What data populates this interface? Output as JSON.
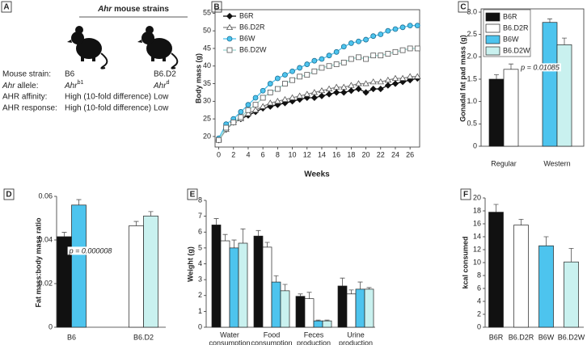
{
  "panel_a": {
    "panel": "A",
    "title_italic": "Ahr",
    "title": "mouse strains",
    "rows": [
      [
        "Mouse strain:",
        "B6",
        "B6.D2"
      ],
      [
        {
          "italic": "Ahr",
          "text": "allele:"
        },
        {
          "text": "Ahr",
          "sup": "b1"
        },
        {
          "text": "Ahr",
          "sup": "d"
        }
      ],
      [
        "AHR affinity:",
        "High (10-fold difference)",
        "Low"
      ],
      [
        "AHR response:",
        "High (10-fold difference)",
        "Low"
      ]
    ]
  },
  "chart_data": [
    {
      "panel": "B",
      "type": "line",
      "x_label": "Weeks",
      "y_label": "Body mass (g)",
      "legend": "upper left",
      "x": [
        0,
        1,
        2,
        3,
        4,
        5,
        6,
        7,
        8,
        9,
        10,
        11,
        12,
        13,
        14,
        15,
        16,
        17,
        18,
        19,
        20,
        21,
        22,
        23,
        24,
        25,
        26,
        27
      ],
      "xlim": [
        -0.5,
        27.3
      ],
      "xticks": [
        0,
        2,
        4,
        6,
        8,
        10,
        12,
        14,
        16,
        18,
        20,
        22,
        24,
        26
      ],
      "ylim": [
        17,
        56
      ],
      "yticks": [
        20,
        25,
        30,
        35,
        40,
        45,
        50,
        55
      ],
      "series": [
        {
          "name": "B6R",
          "color": "#111111",
          "marker": "diamond",
          "values": [
            19,
            22,
            24,
            25,
            26,
            27,
            28,
            28.5,
            29,
            29.5,
            30,
            30.5,
            31,
            31,
            31.5,
            32,
            32.5,
            32.5,
            33,
            33.5,
            32.5,
            33.5,
            33.5,
            34.5,
            35,
            35.5,
            36,
            36.5
          ]
        },
        {
          "name": "B6.D2R",
          "color": "#888888",
          "marker": "triangle",
          "values": [
            19,
            22,
            24,
            25,
            26.5,
            27.5,
            28.5,
            29.5,
            30,
            30.5,
            31,
            31.5,
            32,
            32.5,
            33,
            33.5,
            34,
            34,
            34.5,
            35,
            35,
            35.5,
            35.5,
            36,
            36.5,
            36.5,
            37,
            37
          ]
        },
        {
          "name": "B6W",
          "color": "#4dc4ee",
          "marker": "circle",
          "values": [
            19.5,
            23.5,
            25,
            27,
            29,
            31,
            33,
            35,
            36.5,
            37.5,
            38.5,
            39.5,
            40.5,
            41.5,
            42,
            43,
            44,
            45.5,
            46.5,
            47,
            47.5,
            48.5,
            49,
            50,
            50.5,
            51,
            51.5,
            51.5
          ]
        },
        {
          "name": "B6.D2W",
          "color": "#9fd9d2",
          "marker": "square",
          "values": [
            19,
            22.5,
            24,
            25.5,
            27.5,
            29,
            31,
            32.5,
            33.5,
            35,
            36,
            37,
            37.5,
            38.5,
            39.5,
            40,
            40.5,
            41,
            42,
            42.5,
            42,
            43,
            43,
            43.5,
            44,
            44.5,
            45,
            45
          ]
        }
      ]
    },
    {
      "panel": "C",
      "type": "bar",
      "y_label": "Gonadal fat pad mass (g)",
      "legend": "upper left",
      "annotation": "p = 0.01085",
      "categories": [
        "Regular",
        "Western"
      ],
      "ylim": [
        0,
        3
      ],
      "yticks": [
        0,
        0.5,
        {
          "value": 1,
          "label": "1.0"
        },
        1.5,
        {
          "value": 2,
          "label": "2.0"
        },
        2.5,
        {
          "value": 3,
          "label": "3.0"
        }
      ],
      "series": [
        {
          "name": "B6R",
          "color": "#111111",
          "values": [
            1.5,
            null
          ],
          "errors": [
            0.1,
            null
          ]
        },
        {
          "name": "B6.D2R",
          "color": "#ffffff",
          "values": [
            1.72,
            null
          ],
          "errors": [
            0.12,
            null
          ]
        },
        {
          "name": "B6W",
          "color": "#4dc4ee",
          "values": [
            null,
            2.77
          ],
          "errors": [
            null,
            0.08
          ]
        },
        {
          "name": "B6.D2W",
          "color": "#c9f1ef",
          "values": [
            null,
            2.27
          ],
          "errors": [
            null,
            0.15
          ]
        }
      ]
    },
    {
      "panel": "D",
      "type": "bar",
      "y_label": "Fat mass:body mass ratio",
      "annotation": "p = 0.000008",
      "categories": [
        "B6",
        "B6.D2"
      ],
      "ylim": [
        0,
        0.06
      ],
      "yticks": [
        0,
        0.02,
        0.04,
        0.06
      ],
      "series": [
        {
          "colors": [
            "#111111",
            "#ffffff"
          ],
          "values": [
            0.0415,
            0.0465
          ],
          "errors": [
            0.002,
            0.002
          ]
        },
        {
          "colors": [
            "#4dc4ee",
            "#c9f1ef"
          ],
          "values": [
            0.056,
            0.051
          ],
          "errors": [
            0.0025,
            0.002
          ]
        }
      ]
    },
    {
      "panel": "E",
      "type": "bar",
      "y_label": "Weight (g)",
      "categories": [
        [
          "Water",
          "consumption"
        ],
        [
          "Food",
          "consumption"
        ],
        [
          "Feces",
          "production"
        ],
        [
          "Urine",
          "production"
        ]
      ],
      "ylim": [
        0,
        8
      ],
      "yticks": [
        0,
        1,
        2,
        3,
        4,
        5,
        6,
        7,
        8
      ],
      "series": [
        {
          "color": "#111111",
          "values": [
            6.45,
            5.75,
            1.95,
            2.6
          ],
          "errors": [
            0.4,
            0.35,
            0.15,
            0.5
          ]
        },
        {
          "color": "#ffffff",
          "values": [
            5.45,
            5.05,
            1.8,
            2.1
          ],
          "errors": [
            0.4,
            0.3,
            0.4,
            0.25
          ]
        },
        {
          "color": "#4dc4ee",
          "values": [
            5.0,
            2.85,
            0.4,
            2.4
          ],
          "errors": [
            0.5,
            0.4,
            0.05,
            0.45
          ]
        },
        {
          "color": "#c9f1ef",
          "values": [
            5.3,
            2.3,
            0.4,
            2.4
          ],
          "errors": [
            0.9,
            0.4,
            0.05,
            0.1
          ]
        }
      ]
    },
    {
      "panel": "F",
      "type": "bar",
      "y_label": "kcal consumed",
      "categories": [
        "B6R",
        "B6.D2R",
        "B6W",
        "B6.D2W"
      ],
      "ylim": [
        0,
        20
      ],
      "yticks": [
        0,
        2,
        4,
        6,
        8,
        10,
        12,
        14,
        16,
        18,
        20
      ],
      "series": [
        {
          "colors": [
            "#111111",
            "#ffffff",
            "#4dc4ee",
            "#c9f1ef"
          ],
          "values": [
            17.8,
            15.8,
            12.6,
            10.1
          ],
          "errors": [
            1.2,
            0.9,
            1.4,
            2.1
          ]
        }
      ]
    }
  ]
}
